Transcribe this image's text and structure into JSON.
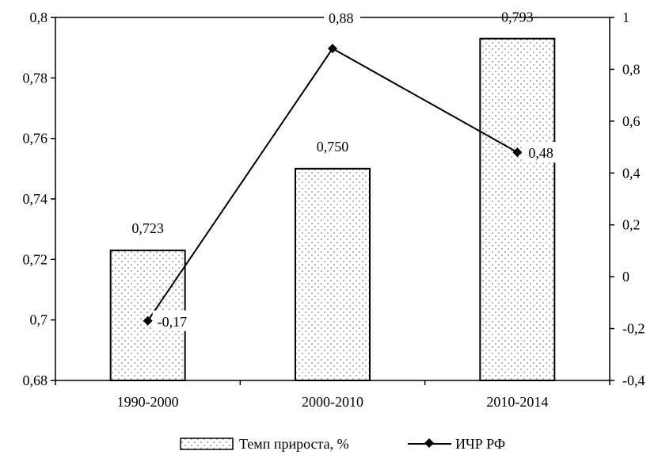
{
  "chart_data": {
    "type": "bar",
    "categories": [
      "1990-2000",
      "2000-2010",
      "2010-2014"
    ],
    "series": [
      {
        "name": "Темп прироста, %",
        "type": "bar",
        "axis": "left",
        "values": [
          0.723,
          0.75,
          0.793
        ],
        "labels": [
          "0,723",
          "0,750",
          "0,793"
        ],
        "pattern": "dotted"
      },
      {
        "name": "ИЧР РФ",
        "type": "line",
        "axis": "right",
        "marker": "diamond",
        "values": [
          -0.17,
          0.88,
          0.48
        ],
        "labels": [
          "-0,17",
          "0,88",
          "0,48"
        ]
      }
    ],
    "y_left": {
      "range": [
        0.68,
        0.8
      ],
      "ticks": [
        0.68,
        0.7,
        0.72,
        0.74,
        0.76,
        0.78,
        0.8
      ],
      "tick_labels": [
        "0,68",
        "0,7",
        "0,72",
        "0,74",
        "0,76",
        "0,78",
        "0,8"
      ]
    },
    "y_right": {
      "range": [
        -0.4,
        1
      ],
      "ticks": [
        -0.4,
        -0.2,
        0,
        0.2,
        0.4,
        0.6,
        0.8,
        1
      ],
      "tick_labels": [
        "-0,4",
        "-0,2",
        "0",
        "0,2",
        "0,4",
        "0,6",
        "0,8",
        "1"
      ]
    },
    "grid": false,
    "legend": {
      "position": "bottom",
      "entries": [
        "Темп прироста, %",
        "ИЧР РФ"
      ]
    },
    "colors": {
      "bar_fill": "#ffffff",
      "bar_dots": "#555555",
      "line": "#000000",
      "marker": "#000000"
    }
  }
}
